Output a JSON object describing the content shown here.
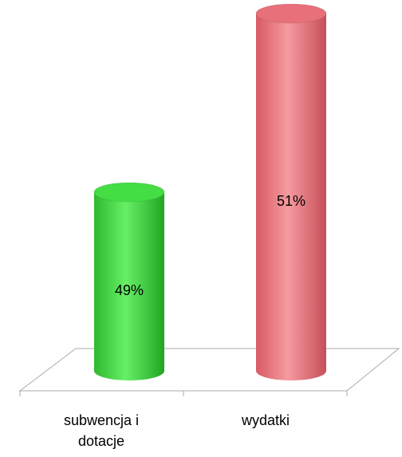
{
  "chart_data": {
    "type": "bar",
    "categories": [
      "subwencja i dotacje",
      "wydatki"
    ],
    "values": [
      49,
      51
    ],
    "value_labels": [
      "49%",
      "51%"
    ],
    "colors": [
      "#44dd44",
      "#e8707a"
    ],
    "ylim": [
      47,
      51
    ]
  }
}
